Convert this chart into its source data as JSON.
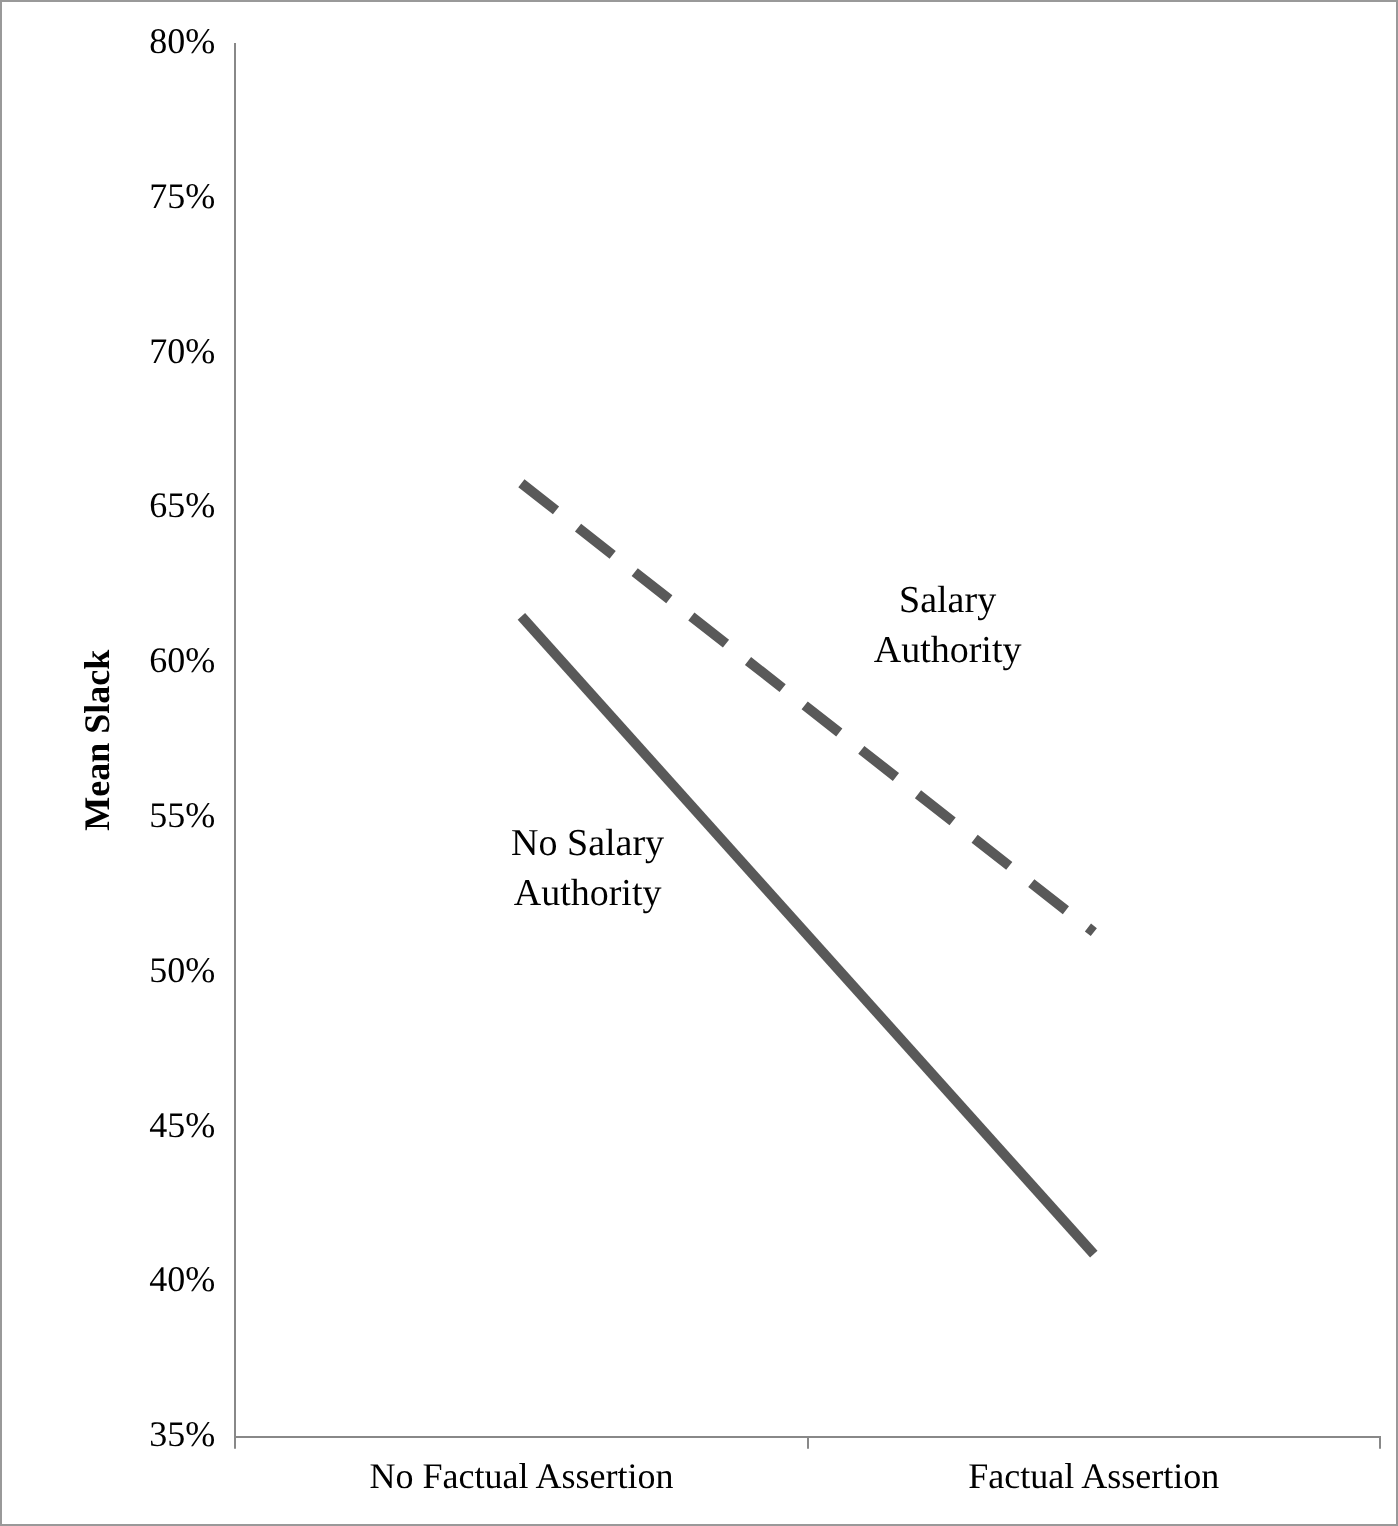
{
  "chart_data": {
    "type": "line",
    "ylabel": "Mean Slack",
    "categories": [
      "No Factual Assertion",
      "Factual Assertion"
    ],
    "series": [
      {
        "name": "Salary Authority",
        "color": "#595959",
        "values": [
          65.8,
          51.3
        ],
        "line_style": "dashed"
      },
      {
        "name": "No Salary Authority",
        "color": "#595959",
        "values": [
          61.5,
          40.9
        ],
        "line_style": "solid"
      }
    ],
    "ylim": [
      35,
      80
    ],
    "yticks": [
      {
        "value": 35,
        "label": "35%"
      },
      {
        "value": 40,
        "label": "40%"
      },
      {
        "value": 45,
        "label": "45%"
      },
      {
        "value": 50,
        "label": "50%"
      },
      {
        "value": 55,
        "label": "55%"
      },
      {
        "value": 60,
        "label": "60%"
      },
      {
        "value": 65,
        "label": "65%"
      },
      {
        "value": 70,
        "label": "70%"
      },
      {
        "value": 75,
        "label": "75%"
      },
      {
        "value": 80,
        "label": "80%"
      }
    ],
    "grid": false,
    "legend": false,
    "marker": "none"
  }
}
